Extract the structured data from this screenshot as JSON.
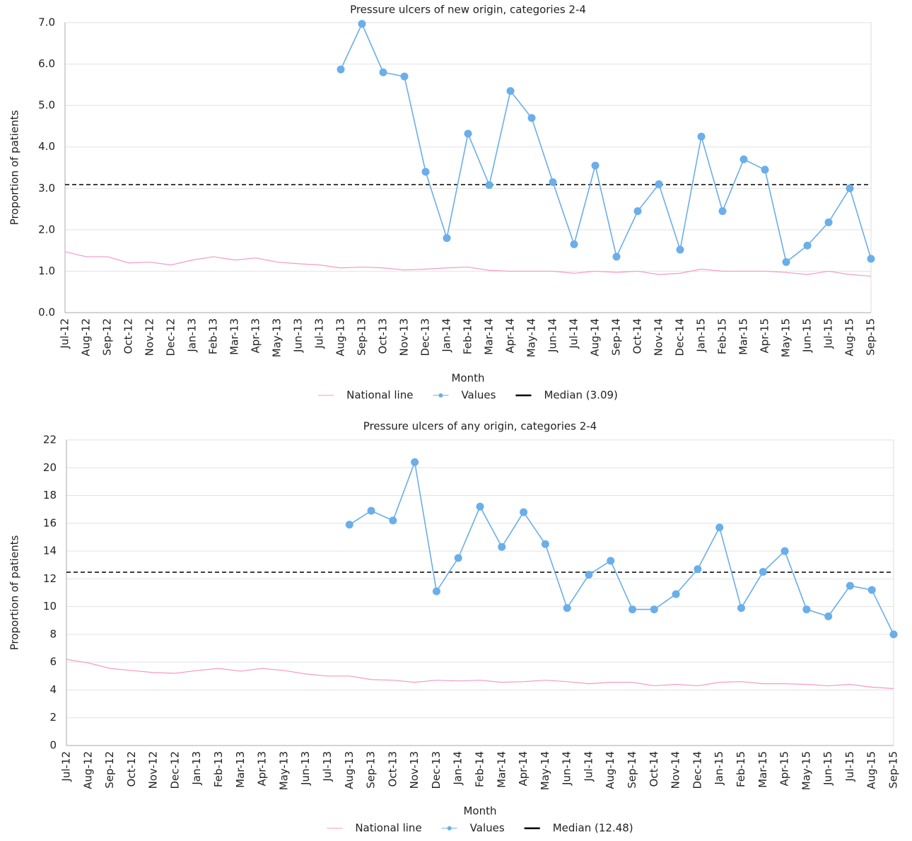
{
  "chart_data": [
    {
      "type": "line",
      "title": "Pressure ulcers of new origin, categories 2-4",
      "x_label": "Month",
      "y_label": "Proportion of patients",
      "categories": [
        "Jul-12",
        "Aug-12",
        "Sep-12",
        "Oct-12",
        "Nov-12",
        "Dec-12",
        "Jan-13",
        "Feb-13",
        "Mar-13",
        "Apr-13",
        "May-13",
        "Jun-13",
        "Jul-13",
        "Aug-13",
        "Sep-13",
        "Oct-13",
        "Nov-13",
        "Dec-13",
        "Jan-14",
        "Feb-14",
        "Mar-14",
        "Apr-14",
        "May-14",
        "Jun-14",
        "Jul-14",
        "Aug-14",
        "Sep-14",
        "Oct-14",
        "Nov-14",
        "Dec-14",
        "Jan-15",
        "Feb-15",
        "Mar-15",
        "Apr-15",
        "May-15",
        "Jun-15",
        "Jul-15",
        "Aug-15",
        "Sep-15"
      ],
      "series": [
        {
          "name": "National line",
          "color": "#f49ac1",
          "markers": false,
          "values": [
            1.47,
            1.35,
            1.35,
            1.2,
            1.22,
            1.15,
            1.27,
            1.35,
            1.27,
            1.32,
            1.22,
            1.18,
            1.15,
            1.08,
            1.1,
            1.08,
            1.03,
            1.05,
            1.08,
            1.1,
            1.02,
            1.0,
            1.0,
            1.0,
            0.95,
            1.0,
            0.97,
            1.0,
            0.92,
            0.95,
            1.05,
            1.0,
            1.0,
            1.0,
            0.97,
            0.92,
            1.0,
            0.92,
            0.88
          ]
        },
        {
          "name": "Values",
          "color": "#6aaeea",
          "markers": true,
          "values": [
            null,
            null,
            null,
            null,
            null,
            null,
            null,
            null,
            null,
            null,
            null,
            null,
            null,
            5.87,
            6.97,
            5.8,
            5.7,
            3.4,
            1.8,
            4.32,
            3.08,
            5.35,
            4.7,
            3.15,
            1.65,
            3.55,
            1.35,
            2.45,
            3.1,
            1.52,
            4.25,
            2.45,
            3.7,
            3.45,
            1.22,
            1.62,
            2.18,
            3.0,
            1.3
          ]
        }
      ],
      "reference_line": {
        "name": "Median (3.09)",
        "value": 3.09,
        "color": "#000000"
      },
      "ylim": [
        0,
        7
      ],
      "yticks": [
        {
          "value": 0,
          "label": "0.0"
        },
        {
          "value": 1,
          "label": "1.0"
        },
        {
          "value": 2,
          "label": "2.0"
        },
        {
          "value": 3,
          "label": "3.0"
        },
        {
          "value": 4,
          "label": "4.0"
        },
        {
          "value": 5,
          "label": "5.0"
        },
        {
          "value": 6,
          "label": "6.0"
        },
        {
          "value": 7,
          "label": "7.0"
        }
      ],
      "grid": true,
      "legend": "bottom"
    },
    {
      "type": "line",
      "title": "Pressure ulcers of any origin, categories 2-4",
      "x_label": "Month",
      "y_label": "Proportion of patients",
      "categories": [
        "Jul-12",
        "Aug-12",
        "Sep-12",
        "Oct-12",
        "Nov-12",
        "Dec-12",
        "Jan-13",
        "Feb-13",
        "Mar-13",
        "Apr-13",
        "May-13",
        "Jun-13",
        "Jul-13",
        "Aug-13",
        "Sep-13",
        "Oct-13",
        "Nov-13",
        "Dec-13",
        "Jan-14",
        "Feb-14",
        "Mar-14",
        "Apr-14",
        "May-14",
        "Jun-14",
        "Jul-14",
        "Aug-14",
        "Sep-14",
        "Oct-14",
        "Nov-14",
        "Dec-14",
        "Jan-15",
        "Feb-15",
        "Mar-15",
        "Apr-15",
        "May-15",
        "Jun-15",
        "Jul-15",
        "Aug-15",
        "Sep-15"
      ],
      "series": [
        {
          "name": "National line",
          "color": "#f49ac1",
          "markers": false,
          "values": [
            6.2,
            5.95,
            5.55,
            5.4,
            5.25,
            5.2,
            5.4,
            5.55,
            5.35,
            5.55,
            5.4,
            5.15,
            5.0,
            5.0,
            4.75,
            4.7,
            4.55,
            4.7,
            4.65,
            4.7,
            4.55,
            4.6,
            4.7,
            4.6,
            4.45,
            4.55,
            4.55,
            4.3,
            4.4,
            4.3,
            4.55,
            4.6,
            4.45,
            4.45,
            4.4,
            4.3,
            4.4,
            4.2,
            4.1
          ]
        },
        {
          "name": "Values",
          "color": "#6aaeea",
          "markers": true,
          "values": [
            null,
            null,
            null,
            null,
            null,
            null,
            null,
            null,
            null,
            null,
            null,
            null,
            null,
            15.9,
            16.9,
            16.2,
            20.4,
            11.1,
            13.5,
            17.2,
            14.3,
            16.8,
            14.5,
            9.9,
            12.3,
            13.3,
            9.8,
            9.8,
            10.9,
            12.7,
            15.7,
            9.9,
            12.5,
            14.0,
            9.8,
            9.3,
            11.5,
            11.2,
            8.0
          ]
        }
      ],
      "reference_line": {
        "name": "Median (12.48)",
        "value": 12.48,
        "color": "#000000"
      },
      "ylim": [
        0,
        22
      ],
      "yticks": [
        0,
        2,
        4,
        6,
        8,
        10,
        12,
        14,
        16,
        18,
        20,
        22
      ],
      "grid": true,
      "legend": "bottom"
    }
  ]
}
